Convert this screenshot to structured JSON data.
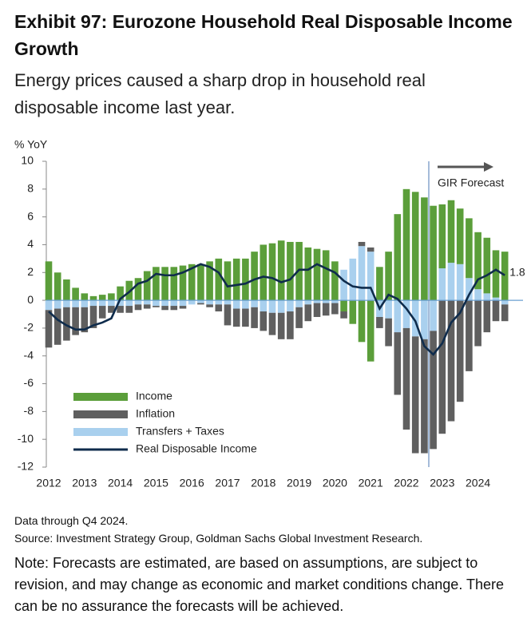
{
  "chart_data": {
    "type": "bar",
    "title": "Exhibit 97: Eurozone Household Real Disposable Income Growth",
    "subtitle": "Energy prices caused a sharp drop in household real disposable income last year.",
    "y_label": "% YoY",
    "annotation": "GIR Forecast",
    "footnotes": [
      "Data through Q4 2024.",
      "Source: Investment Strategy Group, Goldman Sachs Global Investment Research."
    ],
    "note": "Note: Forecasts are estimated, are based on assumptions, are subject to revision, and may change as economic and market conditions change. There can be no assurance the forecasts will be achieved.",
    "categories": [
      "2012",
      null,
      null,
      null,
      "2013",
      null,
      null,
      null,
      "2014",
      null,
      null,
      null,
      "2015",
      null,
      null,
      null,
      "2016",
      null,
      null,
      null,
      "2017",
      null,
      null,
      null,
      "2018",
      null,
      null,
      null,
      "2019",
      null,
      null,
      null,
      "2020",
      null,
      null,
      null,
      "2021",
      null,
      null,
      null,
      "2022",
      null,
      null,
      null,
      "2023",
      null,
      null,
      null,
      "2024",
      null,
      null,
      null
    ],
    "series": [
      {
        "name": "Income",
        "color": "#5b9e3a",
        "values": [
          2.8,
          2.0,
          1.5,
          0.9,
          0.5,
          0.3,
          0.4,
          0.5,
          1.0,
          1.4,
          1.6,
          2.1,
          2.4,
          2.4,
          2.4,
          2.5,
          2.6,
          2.6,
          2.8,
          3.0,
          2.8,
          3.0,
          3.0,
          3.5,
          4.0,
          4.1,
          4.3,
          4.2,
          4.2,
          3.8,
          3.7,
          3.6,
          2.8,
          -0.8,
          -1.7,
          -3.0,
          -4.4,
          2.4,
          3.5,
          6.2,
          8.0,
          7.8,
          7.4,
          6.8,
          4.6,
          4.5,
          4.0,
          4.3,
          4.1,
          4.0,
          3.4,
          3.5
        ]
      },
      {
        "name": "Inflation",
        "color": "#5f5f5f",
        "values": [
          -2.7,
          -2.6,
          -2.4,
          -2.0,
          -1.8,
          -1.6,
          -0.9,
          -0.5,
          -0.5,
          -0.5,
          -0.4,
          -0.3,
          -0.1,
          -0.3,
          -0.3,
          -0.2,
          0.0,
          -0.1,
          -0.2,
          -0.5,
          -1.5,
          -1.3,
          -1.3,
          -1.5,
          -1.4,
          -1.6,
          -1.9,
          -2.0,
          -1.5,
          -1.2,
          -1.0,
          -0.9,
          -0.8,
          -0.5,
          0.0,
          0.3,
          0.3,
          -0.8,
          -2.0,
          -4.5,
          -7.3,
          -8.4,
          -8.2,
          -8.5,
          -9.6,
          -8.7,
          -7.3,
          -5.1,
          -3.3,
          -2.3,
          -1.5,
          -1.2
        ]
      },
      {
        "name": "Transfers + Taxes",
        "color": "#a9d0ee",
        "values": [
          -0.7,
          -0.6,
          -0.5,
          -0.5,
          -0.5,
          -0.4,
          -0.4,
          -0.4,
          -0.4,
          -0.4,
          -0.3,
          -0.3,
          -0.4,
          -0.4,
          -0.4,
          -0.4,
          -0.3,
          -0.2,
          -0.3,
          -0.3,
          -0.3,
          -0.6,
          -0.6,
          -0.5,
          -0.8,
          -0.9,
          -0.9,
          -0.8,
          -0.5,
          -0.3,
          -0.2,
          -0.2,
          -0.2,
          2.2,
          3.0,
          3.9,
          3.5,
          -1.2,
          -1.3,
          -2.3,
          -2.0,
          -2.6,
          -2.8,
          -2.2,
          2.3,
          2.7,
          2.6,
          1.6,
          0.8,
          0.5,
          0.2,
          -0.3
        ]
      },
      {
        "name": "Real Disposable Income",
        "type": "line",
        "color": "#0f2c4c",
        "values": [
          -0.8,
          -1.4,
          -1.8,
          -2.1,
          -2.1,
          -1.8,
          -1.6,
          -1.3,
          0.1,
          0.6,
          1.2,
          1.4,
          1.9,
          1.8,
          1.8,
          2.0,
          2.3,
          2.6,
          2.4,
          2.0,
          1.0,
          1.1,
          1.2,
          1.5,
          1.7,
          1.6,
          1.3,
          1.5,
          2.2,
          2.2,
          2.6,
          2.3,
          2.0,
          1.4,
          1.0,
          0.9,
          0.9,
          -0.6,
          0.4,
          0.1,
          -0.6,
          -1.5,
          -3.3,
          -3.9,
          -3.1,
          -1.6,
          -0.9,
          0.4,
          1.5,
          1.8,
          2.2,
          1.8
        ]
      }
    ],
    "ylim": [
      -12,
      10
    ],
    "yticks": [
      10,
      8,
      6,
      4,
      2,
      0,
      -2,
      -4,
      -6,
      -8,
      -10,
      -12
    ],
    "legend": "lower-left"
  }
}
